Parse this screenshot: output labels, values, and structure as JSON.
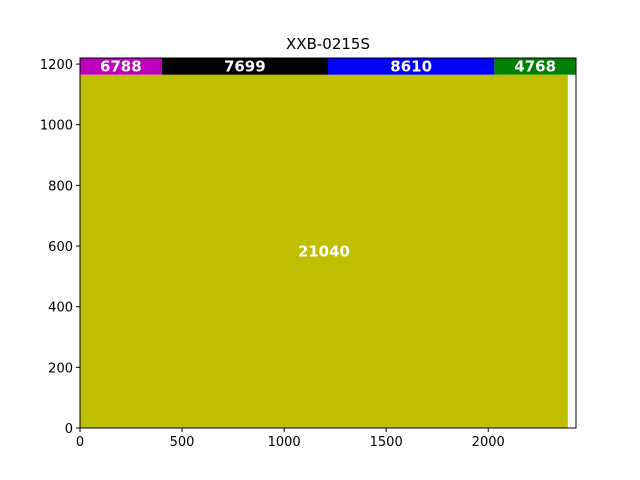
{
  "chart_data": {
    "type": "bar",
    "title": "XXB-0215S",
    "xlabel": "",
    "ylabel": "",
    "xlim": [
      0,
      2430
    ],
    "ylim": [
      0,
      1220
    ],
    "x_ticks": [
      0,
      500,
      1000,
      1500,
      2000
    ],
    "y_ticks": [
      0,
      200,
      400,
      600,
      800,
      1000,
      1200
    ],
    "grid": false,
    "rects": [
      {
        "label": "21040",
        "x0": 0,
        "x1": 2390,
        "y0": 0,
        "y1": 1165,
        "color": "#bfbf00"
      },
      {
        "label": "6788",
        "x0": 0,
        "x1": 400,
        "y0": 1165,
        "y1": 1220,
        "color": "#bf00bf"
      },
      {
        "label": "7699",
        "x0": 400,
        "x1": 1215,
        "y0": 1165,
        "y1": 1220,
        "color": "#000000"
      },
      {
        "label": "8610",
        "x0": 1215,
        "x1": 2030,
        "y0": 1165,
        "y1": 1220,
        "color": "#0000ff"
      },
      {
        "label": "4768",
        "x0": 2030,
        "x1": 2430,
        "y0": 1165,
        "y1": 1220,
        "color": "#008000"
      }
    ]
  }
}
